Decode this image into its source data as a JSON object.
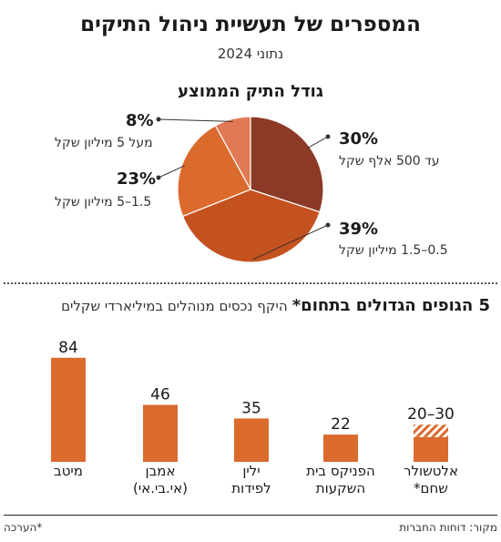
{
  "header": {
    "title": "המספרים של תעשיית ניהול התיקים",
    "subtitle": "נתוני 2024"
  },
  "chart_data": [
    {
      "type": "pie",
      "title": "גודל התיק הממוצע",
      "slices": [
        {
          "label": "עד 500 אלף שקל",
          "pct_text": "30%",
          "value": 30,
          "color": "#8a3a26"
        },
        {
          "label": "0.5–1.5 מיליון שקל",
          "pct_text": "39%",
          "value": 39,
          "color": "#c4521f"
        },
        {
          "label": "1.5–5 מיליון שקל",
          "pct_text": "23%",
          "value": 23,
          "color": "#db6a2d"
        },
        {
          "label": "מעל 5 מיליון שקל",
          "pct_text": "8%",
          "value": 8,
          "color": "#e07a55"
        }
      ]
    },
    {
      "type": "bar",
      "title": "5 הגופים הגדולים בתחום*",
      "subtitle": "היקף נכסים מנוהלים במיליארדי שקלים",
      "categories": [
        "מיטב",
        "אמבן\n(אי.בי.אי)",
        "ילין\nלפידות",
        "הפניקס בית\nהשקעות",
        "אלטשולר\nשחם*"
      ],
      "series": [
        {
          "values": [
            84,
            46,
            35,
            22,
            20
          ],
          "range_high": [
            null,
            null,
            null,
            null,
            30
          ]
        }
      ],
      "value_labels": [
        "84",
        "46",
        "35",
        "22",
        "20–30"
      ],
      "bar_color": "#db6a2d"
    }
  ],
  "footer": {
    "note": "*הערכה",
    "source": "מקור: דוחות החברות"
  }
}
